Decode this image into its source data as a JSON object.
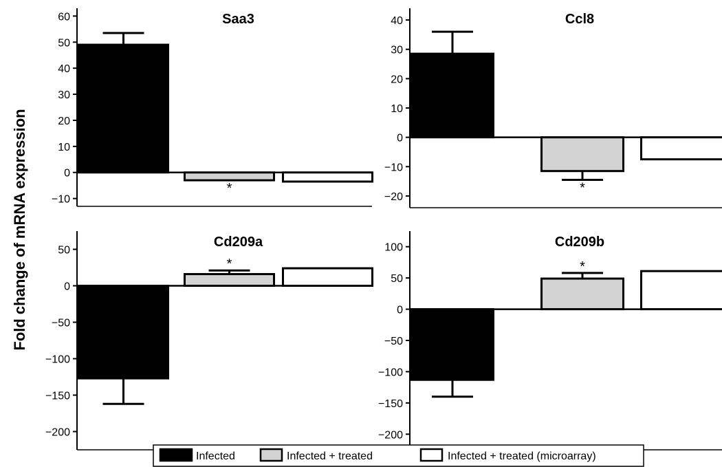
{
  "ylabel": "Fold change of mRNA expression",
  "legend": [
    {
      "name": "Infected",
      "color": "#000000"
    },
    {
      "name": "Infected + treated",
      "color": "#d3d3d3"
    },
    {
      "name": "Infected + treated (microarray)",
      "color": "#ffffff"
    }
  ],
  "chart_data": [
    {
      "type": "bar",
      "title": "Saa3",
      "categories": [
        "Infected",
        "Infected + treated",
        "Infected + treated (microarray)"
      ],
      "values": [
        49,
        -3,
        -3.5
      ],
      "error": [
        4.5,
        0,
        0
      ],
      "error_dir": [
        "up",
        "down",
        "down"
      ],
      "significance": [
        "",
        "*",
        ""
      ],
      "yticks": [
        60,
        50,
        40,
        30,
        20,
        10,
        0,
        -10
      ],
      "ytick_labels": [
        "60",
        "50",
        "40",
        "30",
        "20",
        "10",
        "0",
        "−10"
      ],
      "ylim": [
        -13,
        63
      ]
    },
    {
      "type": "bar",
      "title": "Ccl8",
      "categories": [
        "Infected",
        "Infected + treated",
        "Infected + treated (microarray)"
      ],
      "values": [
        28.5,
        -11.5,
        -7.5
      ],
      "error": [
        7.5,
        3,
        0
      ],
      "error_dir": [
        "up",
        "down",
        "down"
      ],
      "significance": [
        "",
        "*",
        ""
      ],
      "yticks": [
        40,
        30,
        20,
        10,
        0,
        -10,
        -20
      ],
      "ytick_labels": [
        "40",
        "30",
        "20",
        "10",
        "0",
        "−10",
        "−20"
      ],
      "ylim": [
        -24,
        44
      ]
    },
    {
      "type": "bar",
      "title": "Cd209a",
      "categories": [
        "Infected",
        "Infected + treated",
        "Infected + treated (microarray)"
      ],
      "values": [
        -127,
        16,
        24
      ],
      "error": [
        35,
        5,
        0
      ],
      "error_dir": [
        "down",
        "up",
        "up"
      ],
      "significance": [
        "",
        "*",
        ""
      ],
      "yticks": [
        50,
        0,
        -50,
        -100,
        -150,
        -200
      ],
      "ytick_labels": [
        "50",
        "0",
        "−50",
        "−100",
        "−150",
        "−200"
      ],
      "ylim": [
        -225,
        75
      ]
    },
    {
      "type": "bar",
      "title": "Cd209b",
      "categories": [
        "Infected",
        "Infected + treated",
        "Infected + treated (microarray)"
      ],
      "values": [
        -113,
        49,
        61
      ],
      "error": [
        27,
        9,
        0
      ],
      "error_dir": [
        "down",
        "up",
        "up"
      ],
      "significance": [
        "",
        "*",
        ""
      ],
      "yticks": [
        100,
        50,
        0,
        -50,
        -100,
        -150,
        -200
      ],
      "ytick_labels": [
        "100",
        "50",
        "0",
        "−50",
        "−100",
        "−150",
        "−200"
      ],
      "ylim": [
        -225,
        125
      ]
    }
  ]
}
